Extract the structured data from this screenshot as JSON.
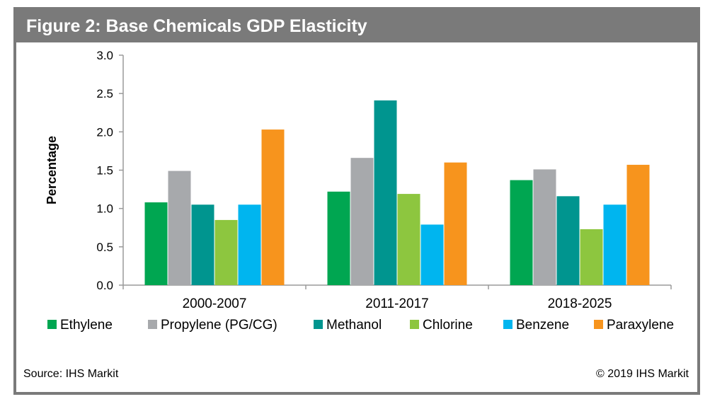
{
  "chart_data": {
    "type": "bar",
    "title": "Figure 2: Base Chemicals GDP Elasticity",
    "ylabel": "Percentage",
    "xlabel": "",
    "ylim": [
      0,
      3.0
    ],
    "yticks": [
      "0.0",
      "0.5",
      "1.0",
      "1.5",
      "2.0",
      "2.5",
      "3.0"
    ],
    "categories": [
      "2000-2007",
      "2011-2017",
      "2018-2025"
    ],
    "legend_position": "bottom",
    "grid": false,
    "series": [
      {
        "name": "Ethylene",
        "color": "#00a651",
        "values": [
          1.08,
          1.22,
          1.37
        ]
      },
      {
        "name": "Propylene (PG/CG)",
        "color": "#a7a9ac",
        "values": [
          1.49,
          1.66,
          1.51
        ]
      },
      {
        "name": "Methanol",
        "color": "#00958f",
        "values": [
          1.05,
          2.41,
          1.16
        ]
      },
      {
        "name": "Chlorine",
        "color": "#8dc63f",
        "values": [
          0.85,
          1.19,
          0.73
        ]
      },
      {
        "name": "Benzene",
        "color": "#00b5ef",
        "values": [
          1.05,
          0.79,
          1.05
        ]
      },
      {
        "name": "Paraxylene",
        "color": "#f7941d",
        "values": [
          2.03,
          1.6,
          1.57
        ]
      }
    ]
  },
  "footer": {
    "source": "Source: IHS Markit",
    "copyright": "© 2019 IHS Markit"
  }
}
